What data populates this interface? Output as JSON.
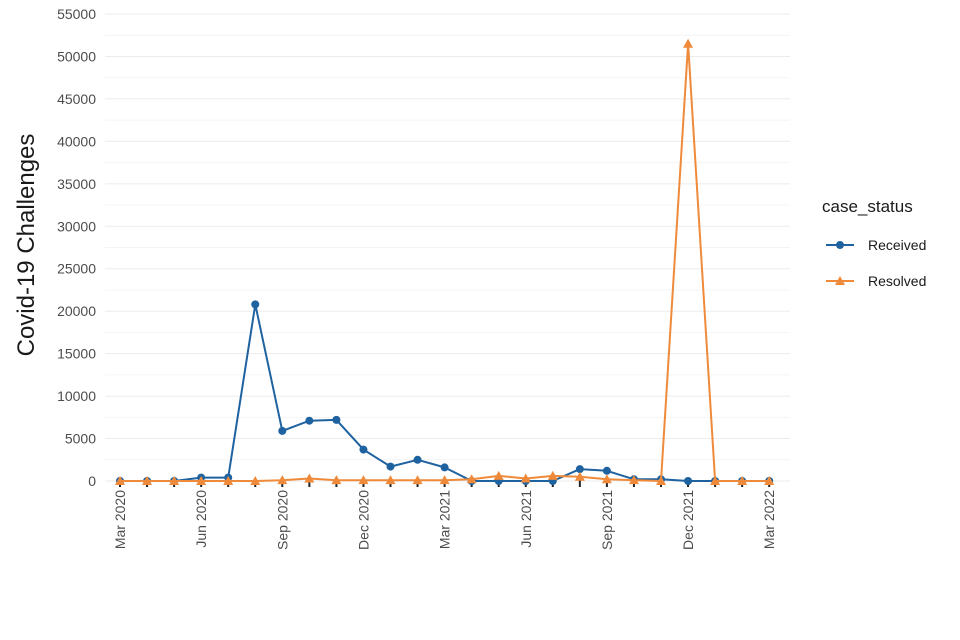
{
  "chart_data": {
    "type": "line",
    "ylabel": "Covid-19 Challenges",
    "xlabel": "",
    "ylim": [
      0,
      55000
    ],
    "yticks": [
      0,
      5000,
      10000,
      15000,
      20000,
      25000,
      30000,
      35000,
      40000,
      45000,
      50000,
      55000
    ],
    "xticks": [
      "Mar 2020",
      "Jun 2020",
      "Sep 2020",
      "Dec 2020",
      "Mar 2021",
      "Jun 2021",
      "Sep 2021",
      "Dec 2021",
      "Mar 2022"
    ],
    "x": [
      "2020-03",
      "2020-04",
      "2020-05",
      "2020-06",
      "2020-07",
      "2020-08",
      "2020-09",
      "2020-10",
      "2020-11",
      "2020-12",
      "2021-01",
      "2021-02",
      "2021-03",
      "2021-04",
      "2021-05",
      "2021-06",
      "2021-07",
      "2021-08",
      "2021-09",
      "2021-10",
      "2021-11",
      "2021-12",
      "2022-01",
      "2022-02",
      "2022-03"
    ],
    "legend_title": "case_status",
    "legend_position": "right",
    "grid": true,
    "series": [
      {
        "name": "Received",
        "color": "#1f62a0",
        "marker": "circle",
        "values": [
          0,
          0,
          0,
          400,
          400,
          20800,
          5900,
          7100,
          7200,
          3700,
          1700,
          2500,
          1600,
          0,
          0,
          0,
          0,
          1400,
          1200,
          200,
          200,
          0,
          0,
          0,
          0
        ]
      },
      {
        "name": "Resolved",
        "color": "#ef8a3a",
        "marker": "triangle",
        "values": [
          0,
          0,
          0,
          0,
          0,
          0,
          100,
          300,
          100,
          100,
          100,
          100,
          100,
          200,
          600,
          300,
          600,
          500,
          200,
          100,
          0,
          51500,
          0,
          0,
          0
        ]
      }
    ]
  }
}
